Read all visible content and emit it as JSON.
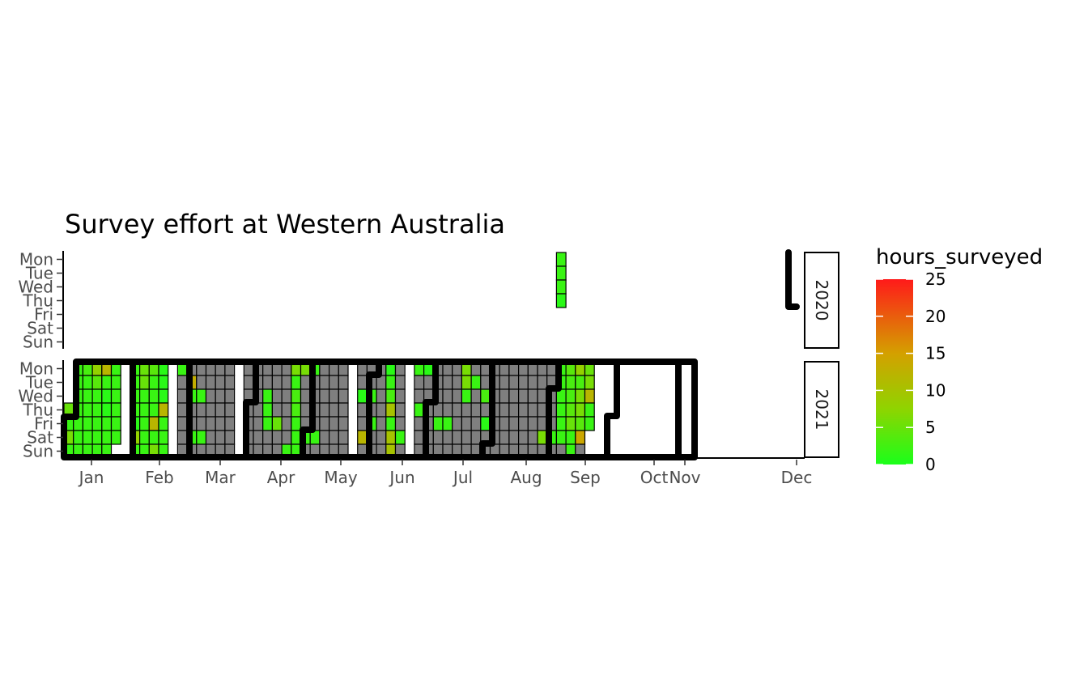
{
  "chart_data": {
    "type": "heatmap",
    "title": "Survey effort at Western Australia",
    "days": [
      "Mon",
      "Tue",
      "Wed",
      "Thu",
      "Fri",
      "Sat",
      "Sun"
    ],
    "months": [
      "Jan",
      "Feb",
      "Mar",
      "Apr",
      "May",
      "Jun",
      "Jul",
      "Aug",
      "Sep",
      "Oct",
      "Nov",
      "Dec"
    ],
    "panels": [
      {
        "year": "2020",
        "first_week": 53,
        "last_week": 53,
        "hours": [
          [
            2
          ],
          [
            2
          ],
          [
            2
          ],
          [
            1
          ],
          [],
          [],
          []
        ]
      },
      {
        "year": "2021",
        "first_week": 1,
        "last_week": 45,
        "hours": [
          [
            null,
            2,
            3,
            8,
            12,
            2,
            null,
            2,
            5,
            4,
            1,
            null,
            2,
            0,
            0,
            0,
            0,
            0,
            null,
            0,
            0,
            0,
            0,
            0,
            6,
            6,
            2,
            0,
            0,
            0,
            null,
            0,
            0,
            0,
            1,
            0,
            null,
            2,
            1,
            0,
            0,
            0,
            6,
            0,
            0,
            0,
            0,
            0,
            0,
            0,
            0,
            0,
            2,
            4,
            8,
            5
          ],
          [
            null,
            2,
            2,
            4,
            2,
            2,
            null,
            2,
            5,
            2,
            1,
            null,
            0,
            13,
            0,
            0,
            0,
            0,
            null,
            0,
            0,
            0,
            0,
            0,
            2,
            0,
            0,
            0,
            0,
            0,
            null,
            0,
            0,
            0,
            2,
            0,
            null,
            0,
            0,
            0,
            0,
            0,
            6,
            2,
            0,
            0,
            0,
            0,
            0,
            0,
            0,
            0,
            2,
            3,
            3,
            6
          ],
          [
            null,
            2,
            2,
            2,
            1,
            2,
            null,
            2,
            2,
            2,
            1,
            null,
            0,
            2,
            2,
            0,
            0,
            0,
            null,
            0,
            0,
            2,
            0,
            0,
            3,
            0,
            0,
            0,
            0,
            0,
            null,
            1,
            2,
            0,
            3,
            0,
            null,
            0,
            0,
            0,
            0,
            0,
            2,
            0,
            3,
            0,
            0,
            0,
            0,
            0,
            0,
            0,
            2,
            3,
            6,
            12
          ],
          [
            5,
            2,
            2,
            2,
            1,
            2,
            null,
            2,
            2,
            2,
            12,
            null,
            0,
            0,
            0,
            0,
            0,
            0,
            null,
            0,
            0,
            2,
            0,
            0,
            3,
            0,
            0,
            0,
            0,
            0,
            null,
            0,
            0,
            0,
            10,
            0,
            null,
            2,
            0,
            0,
            0,
            0,
            0,
            0,
            0,
            0,
            0,
            0,
            0,
            0,
            0,
            0,
            2,
            4,
            6,
            2
          ],
          [
            2,
            2,
            2,
            2,
            2,
            2,
            null,
            1,
            2,
            12,
            2,
            null,
            0,
            0,
            0,
            0,
            0,
            0,
            null,
            0,
            0,
            2,
            5,
            0,
            2,
            0,
            0,
            0,
            0,
            0,
            null,
            0,
            2,
            0,
            2,
            0,
            null,
            0,
            0,
            2,
            2,
            0,
            0,
            0,
            1,
            0,
            0,
            0,
            0,
            0,
            0,
            0,
            2,
            5,
            4,
            2
          ],
          [
            6,
            2,
            2,
            2,
            2,
            2,
            null,
            8,
            2,
            2,
            2,
            null,
            0,
            2,
            2,
            0,
            0,
            0,
            null,
            0,
            0,
            0,
            0,
            0,
            2,
            2,
            2,
            0,
            0,
            0,
            null,
            12,
            0,
            0,
            10,
            2,
            null,
            0,
            0,
            0,
            0,
            0,
            0,
            0,
            0,
            0,
            0,
            0,
            0,
            0,
            6,
            2,
            2,
            2,
            14,
            null
          ],
          [
            2,
            2,
            2,
            2,
            2,
            null,
            null,
            2,
            2,
            6,
            2,
            null,
            0,
            0,
            0,
            0,
            0,
            0,
            null,
            0,
            0,
            0,
            0,
            2,
            2,
            0,
            0,
            0,
            0,
            0,
            null,
            0,
            0,
            0,
            10,
            0,
            null,
            0,
            0,
            0,
            0,
            0,
            0,
            0,
            0,
            0,
            0,
            0,
            0,
            0,
            0,
            0,
            0,
            2,
            0,
            null
          ]
        ]
      }
    ],
    "legend": {
      "title": "hours_surveyed",
      "ticks": [
        "25",
        "20",
        "15",
        "10",
        "5",
        "0"
      ],
      "min": 0,
      "max": 25
    },
    "colors": {
      "zero": "#7f7f7f",
      "low": "#1aff1a",
      "high": "#ff1a1a",
      "grid": "#000000",
      "background": "#ffffff"
    }
  }
}
